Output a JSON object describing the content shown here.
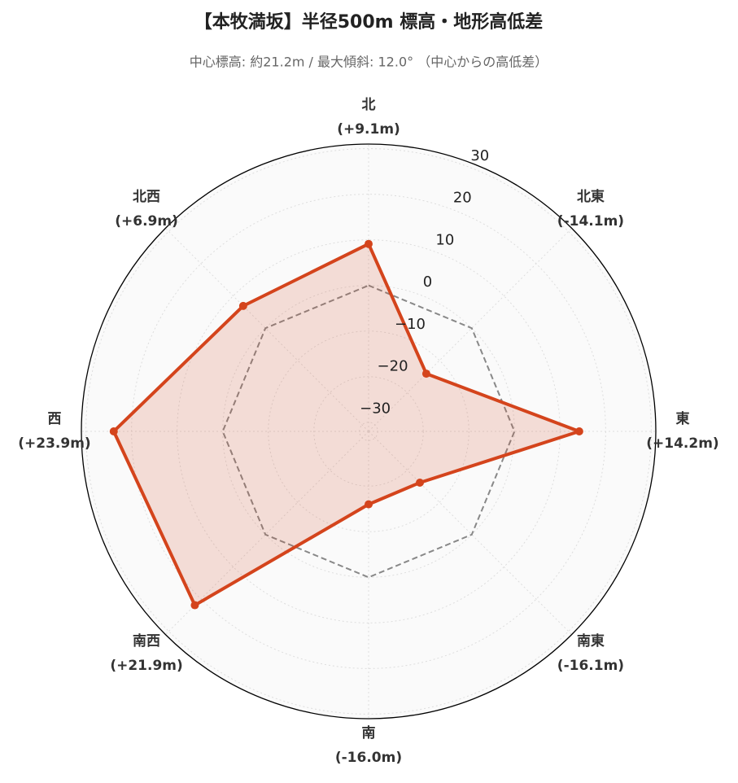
{
  "chart_data": {
    "type": "radar",
    "title": "【本牧満坂】半径500m 標高・地形高低差",
    "subtitle": "中心標高: 約21.2m / 最大傾斜: 12.0° （中心からの高低差）",
    "categories": [
      "北",
      "北東",
      "東",
      "南東",
      "南",
      "南西",
      "西",
      "北西"
    ],
    "series": [
      {
        "values": [
          9.1,
          -14.1,
          14.2,
          -16.1,
          -16.0,
          21.9,
          23.9,
          6.9
        ],
        "value_labels": [
          "(+9.1m)",
          "(-14.1m)",
          "(+14.2m)",
          "(-16.1m)",
          "(-16.0m)",
          "(+21.9m)",
          "(+23.9m)",
          "(+6.9m)"
        ],
        "color": "#d4441c"
      }
    ],
    "ylim": [
      -32,
      31
    ],
    "yticks": [
      {
        "value": -30,
        "label": "−30"
      },
      {
        "value": -20,
        "label": "−20"
      },
      {
        "value": -10,
        "label": "−10"
      },
      0,
      10,
      20,
      30
    ],
    "grid": true
  }
}
